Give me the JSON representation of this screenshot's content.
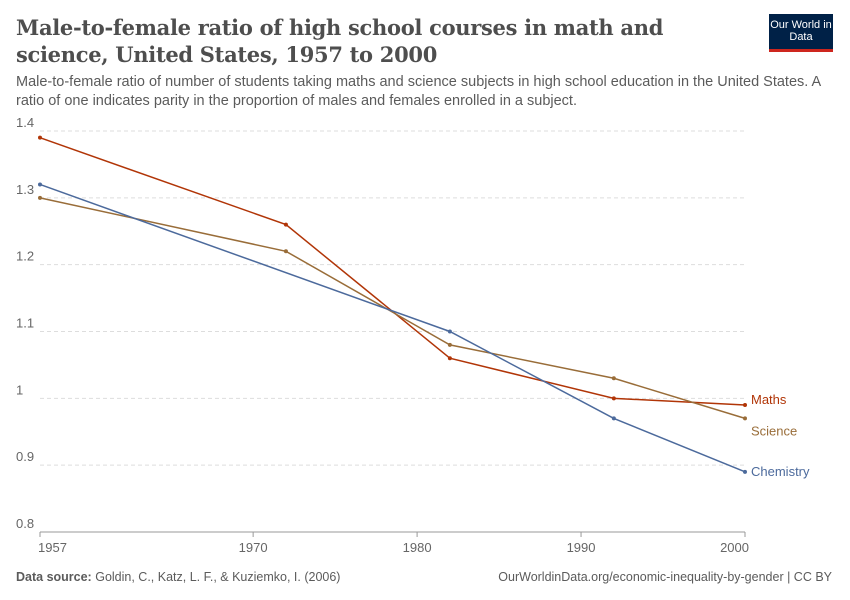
{
  "header": {
    "title": "Male-to-female ratio of high school courses in math and science, United States, 1957 to 2000",
    "subtitle": "Male-to-female ratio of number of students taking maths and science subjects in high school education in the United States. A ratio of one indicates parity in the proportion of males and females enrolled in a subject.",
    "logo": "Our World in Data"
  },
  "footer": {
    "source_label": "Data source:",
    "source": "Goldin, C., Katz, L. F., & Kuziemko, I. (2006)",
    "url": "OurWorldinData.org/economic-inequality-by-gender | CC BY"
  },
  "chart_data": {
    "type": "line",
    "xlim": [
      1957,
      2000
    ],
    "ylim": [
      0.8,
      1.4
    ],
    "x_ticks": [
      1957,
      1970,
      1980,
      1990,
      2000
    ],
    "y_ticks": [
      0.8,
      0.9,
      1,
      1.1,
      1.2,
      1.3,
      1.4
    ],
    "grid": true,
    "legend": "right-end labels",
    "series": [
      {
        "name": "Maths",
        "color": "#b13507",
        "x": [
          1957,
          1972,
          1982,
          1992,
          2000
        ],
        "y": [
          1.39,
          1.26,
          1.06,
          1.0,
          0.99
        ]
      },
      {
        "name": "Science",
        "color": "#996d39",
        "x": [
          1957,
          1972,
          1982,
          1992,
          2000
        ],
        "y": [
          1.3,
          1.22,
          1.08,
          1.03,
          0.97
        ]
      },
      {
        "name": "Chemistry",
        "color": "#4c6a9c",
        "x": [
          1957,
          1982,
          1992,
          2000
        ],
        "y": [
          1.32,
          1.1,
          0.97,
          0.89
        ]
      }
    ]
  }
}
